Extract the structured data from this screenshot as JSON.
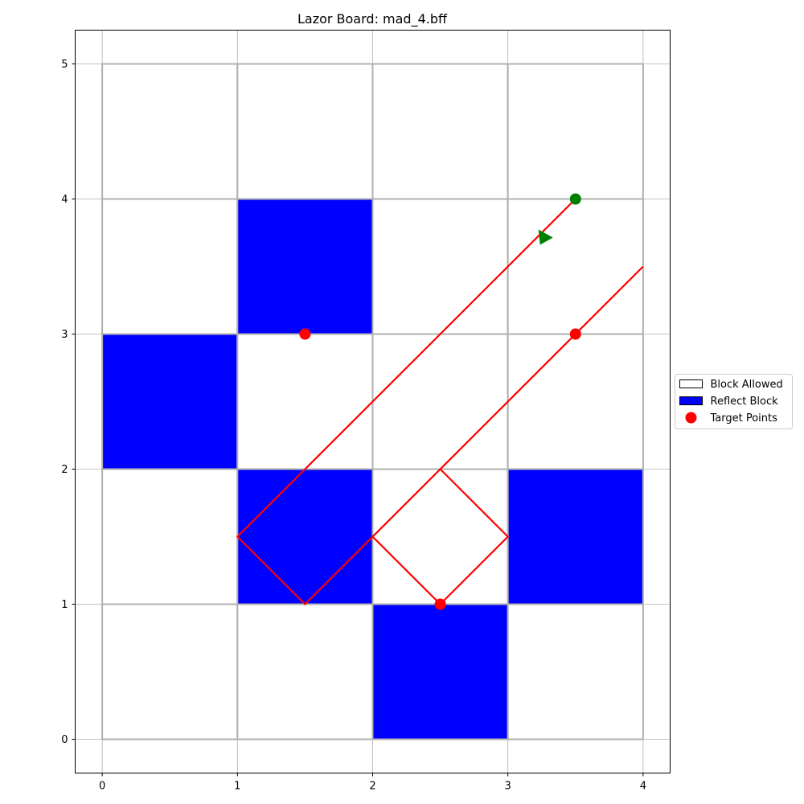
{
  "chart_data": {
    "type": "scatter",
    "title": "Lazor Board: mad_4.bff",
    "xlabel": "",
    "ylabel": "",
    "xlim": [
      -0.2,
      4.2
    ],
    "ylim": [
      -0.25,
      5.25
    ],
    "x_ticks": [
      "0",
      "1",
      "2",
      "3",
      "4"
    ],
    "y_ticks": [
      "0",
      "1",
      "2",
      "3",
      "4",
      "5"
    ],
    "grid": true,
    "legend_position": "center-right, outside plot",
    "legend": [
      {
        "label": "Block Allowed",
        "kind": "patch",
        "face": "#ffffff",
        "edge": "#000000"
      },
      {
        "label": "Reflect Block",
        "kind": "patch",
        "face": "#0000ff",
        "edge": "#000000"
      },
      {
        "label": "Target Points",
        "kind": "marker",
        "face": "#ff0000"
      }
    ],
    "board_cells": [
      {
        "x": 0,
        "y": 4,
        "type": "allowed"
      },
      {
        "x": 1,
        "y": 4,
        "type": "allowed"
      },
      {
        "x": 2,
        "y": 4,
        "type": "allowed"
      },
      {
        "x": 3,
        "y": 4,
        "type": "allowed"
      },
      {
        "x": 0,
        "y": 3,
        "type": "allowed"
      },
      {
        "x": 1,
        "y": 3,
        "type": "reflect"
      },
      {
        "x": 2,
        "y": 3,
        "type": "allowed"
      },
      {
        "x": 3,
        "y": 3,
        "type": "allowed"
      },
      {
        "x": 0,
        "y": 2,
        "type": "reflect"
      },
      {
        "x": 1,
        "y": 2,
        "type": "allowed"
      },
      {
        "x": 2,
        "y": 2,
        "type": "allowed"
      },
      {
        "x": 3,
        "y": 2,
        "type": "allowed"
      },
      {
        "x": 0,
        "y": 1,
        "type": "allowed"
      },
      {
        "x": 1,
        "y": 1,
        "type": "reflect"
      },
      {
        "x": 2,
        "y": 1,
        "type": "allowed"
      },
      {
        "x": 3,
        "y": 1,
        "type": "reflect"
      },
      {
        "x": 0,
        "y": 0,
        "type": "allowed"
      },
      {
        "x": 1,
        "y": 0,
        "type": "allowed"
      },
      {
        "x": 2,
        "y": 0,
        "type": "reflect"
      },
      {
        "x": 3,
        "y": 0,
        "type": "allowed"
      }
    ],
    "laser_paths": [
      {
        "points": [
          [
            3.5,
            4
          ],
          [
            1,
            1.5
          ],
          [
            1.5,
            1
          ],
          [
            2.5,
            2
          ],
          [
            3,
            1.5
          ],
          [
            2.5,
            1
          ],
          [
            2,
            1.5
          ],
          [
            4,
            3.5
          ]
        ]
      }
    ],
    "laser_origin": {
      "x": 3.5,
      "y": 4
    },
    "laser_direction_marker": {
      "x": 3.25,
      "y": 3.72
    },
    "targets": [
      {
        "x": 1.5,
        "y": 3
      },
      {
        "x": 2.5,
        "y": 1
      },
      {
        "x": 3.5,
        "y": 3
      }
    ],
    "colors": {
      "reflect": "#0000ff",
      "allowed": "#ffffff",
      "laser": "#ff0000",
      "target": "#ff0000",
      "origin": "#008000",
      "cell_edge": "#b0b0b0",
      "grid": "#b0b0b0"
    }
  }
}
